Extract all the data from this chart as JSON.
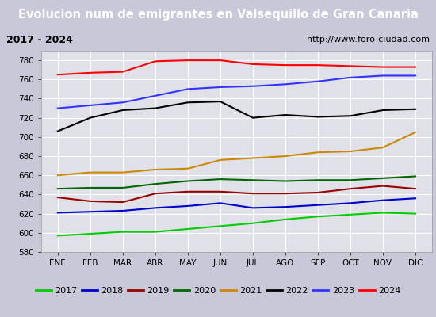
{
  "title": "Evolucion num de emigrantes en Valsequillo de Gran Canaria",
  "subtitle_left": "2017 - 2024",
  "subtitle_right": "http://www.foro-ciudad.com",
  "x_labels": [
    "ENE",
    "FEB",
    "MAR",
    "ABR",
    "MAY",
    "JUN",
    "JUL",
    "AGO",
    "SEP",
    "OCT",
    "NOV",
    "DIC"
  ],
  "ylim": [
    580,
    790
  ],
  "yticks": [
    580,
    600,
    620,
    640,
    660,
    680,
    700,
    720,
    740,
    760,
    780
  ],
  "series": [
    {
      "year": "2017",
      "color": "#00cc00",
      "data": [
        597,
        599,
        601,
        601,
        604,
        607,
        610,
        614,
        617,
        619,
        621,
        620
      ]
    },
    {
      "year": "2018",
      "color": "#0000cc",
      "data": [
        621,
        622,
        623,
        626,
        628,
        631,
        626,
        627,
        629,
        631,
        634,
        636
      ]
    },
    {
      "year": "2019",
      "color": "#990000",
      "data": [
        637,
        633,
        632,
        641,
        643,
        643,
        641,
        641,
        642,
        646,
        649,
        646
      ]
    },
    {
      "year": "2020",
      "color": "#006600",
      "data": [
        646,
        647,
        647,
        651,
        654,
        656,
        655,
        654,
        655,
        655,
        657,
        659
      ]
    },
    {
      "year": "2021",
      "color": "#cc8800",
      "data": [
        660,
        663,
        663,
        666,
        667,
        676,
        678,
        680,
        684,
        685,
        689,
        705
      ]
    },
    {
      "year": "2022",
      "color": "#000000",
      "data": [
        706,
        720,
        728,
        730,
        736,
        737,
        720,
        723,
        721,
        722,
        728,
        729
      ]
    },
    {
      "year": "2023",
      "color": "#3333ff",
      "data": [
        730,
        733,
        736,
        743,
        750,
        752,
        753,
        755,
        758,
        762,
        764,
        764
      ]
    },
    {
      "year": "2024",
      "color": "#ff0000",
      "data": [
        765,
        767,
        768,
        779,
        780,
        780,
        776,
        775,
        775,
        774,
        773,
        773
      ]
    }
  ],
  "title_bg_color": "#5b8dd9",
  "title_font_color": "#ffffff",
  "title_fontsize": 10.5,
  "subtitle_bg_color": "#e8e8e8",
  "subtitle_border_color": "#888888",
  "plot_bg_color": "#e0e0e8",
  "grid_color": "#ffffff",
  "legend_bg_color": "#f5f5f5",
  "legend_border_color": "#888888",
  "line_width": 1.5
}
